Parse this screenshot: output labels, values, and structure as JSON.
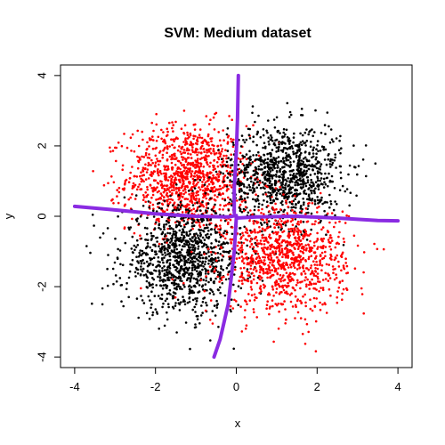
{
  "chart_data": {
    "type": "scatter",
    "title": "SVM: Medium dataset",
    "xlabel": "x",
    "ylabel": "y",
    "xlim": [
      -4,
      4
    ],
    "ylim": [
      -4,
      4
    ],
    "xticks": [
      "-4",
      "-2",
      "0",
      "2",
      "4"
    ],
    "yticks": [
      "-4",
      "-2",
      "0",
      "2",
      "4"
    ],
    "grid": false,
    "colors": {
      "class_a": "#ff0000",
      "class_b": "#000000",
      "boundary": "#8a2be2"
    },
    "clusters": [
      {
        "color_key": "class_a",
        "center": [
          -1.2,
          1.1
        ],
        "sd": 0.75,
        "count": 1100
      },
      {
        "color_key": "class_b",
        "center": [
          1.2,
          1.2
        ],
        "sd": 0.7,
        "count": 1000
      },
      {
        "color_key": "class_b",
        "center": [
          -1.3,
          -1.2
        ],
        "sd": 0.75,
        "count": 1100
      },
      {
        "color_key": "class_a",
        "center": [
          1.2,
          -1.2
        ],
        "sd": 0.75,
        "count": 1000
      }
    ],
    "boundary": [
      {
        "name": "left-branch",
        "points": [
          [
            -4.0,
            0.28
          ],
          [
            -3.0,
            0.18
          ],
          [
            -2.0,
            0.07
          ],
          [
            -1.0,
            0.0
          ],
          [
            -0.2,
            -0.02
          ],
          [
            0.0,
            0.02
          ]
        ]
      },
      {
        "name": "right-branch",
        "points": [
          [
            0.0,
            -0.05
          ],
          [
            0.5,
            -0.02
          ],
          [
            1.5,
            0.0
          ],
          [
            2.5,
            -0.05
          ],
          [
            3.5,
            -0.12
          ],
          [
            4.0,
            -0.13
          ]
        ]
      },
      {
        "name": "top-branch",
        "points": [
          [
            -0.05,
            0.1
          ],
          [
            -0.05,
            0.8
          ],
          [
            0.0,
            1.8
          ],
          [
            0.03,
            2.8
          ],
          [
            0.05,
            4.0
          ]
        ]
      },
      {
        "name": "bottom-branch",
        "points": [
          [
            0.0,
            -0.05
          ],
          [
            -0.05,
            -1.0
          ],
          [
            -0.2,
            -2.5
          ],
          [
            -0.4,
            -3.5
          ],
          [
            -0.55,
            -4.0
          ]
        ]
      }
    ]
  }
}
